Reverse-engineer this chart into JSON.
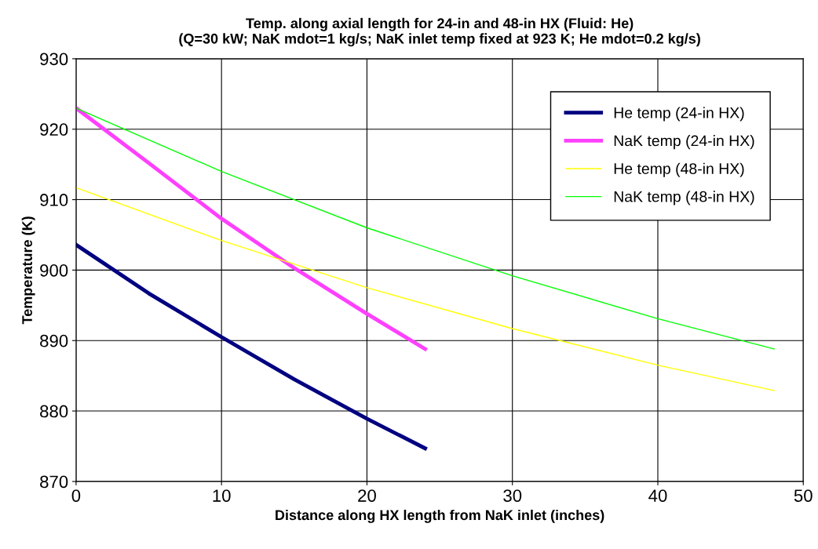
{
  "chart_data": {
    "type": "line",
    "title": "Temp. along axial length for 24-in and 48-in HX (Fluid: He)\n(Q=30 kW; NaK mdot=1 kg/s; NaK inlet temp fixed at 923 K; He mdot=0.2 kg/s)",
    "xlabel": "Distance along HX length from NaK inlet (inches)",
    "ylabel": "Temperature (K)",
    "xlim": [
      0,
      50
    ],
    "xticks": [
      0,
      10,
      20,
      30,
      40,
      50
    ],
    "ylim": [
      870,
      930
    ],
    "yticks": [
      870,
      880,
      890,
      900,
      910,
      920,
      930
    ],
    "grid": true,
    "legend": "top right",
    "marker": "none",
    "line_style": "solid",
    "series": [
      {
        "name": "He temp (24-in HX)",
        "color": "#000080",
        "x": [
          0,
          5,
          10,
          15,
          20,
          24
        ],
        "values": [
          903.6,
          896.7,
          890.5,
          884.5,
          878.9,
          874.7
        ]
      },
      {
        "name": "NaK temp (24-in HX)",
        "color": "#ff40ff",
        "x": [
          0,
          5,
          10,
          15,
          20,
          24
        ],
        "values": [
          923,
          915.2,
          907.3,
          900.3,
          893.8,
          888.8
        ]
      },
      {
        "name": "He temp (48-in HX)",
        "color": "#ffff00",
        "x": [
          0,
          10,
          20,
          30,
          40,
          48
        ],
        "values": [
          911.7,
          904.2,
          897.5,
          891.7,
          886.5,
          882.9
        ]
      },
      {
        "name": "NaK temp (48-in HX)",
        "color": "#00ff00",
        "x": [
          0,
          10,
          20,
          30,
          40,
          48
        ],
        "values": [
          923,
          914,
          906,
          899.2,
          893.1,
          888.8
        ]
      }
    ]
  }
}
